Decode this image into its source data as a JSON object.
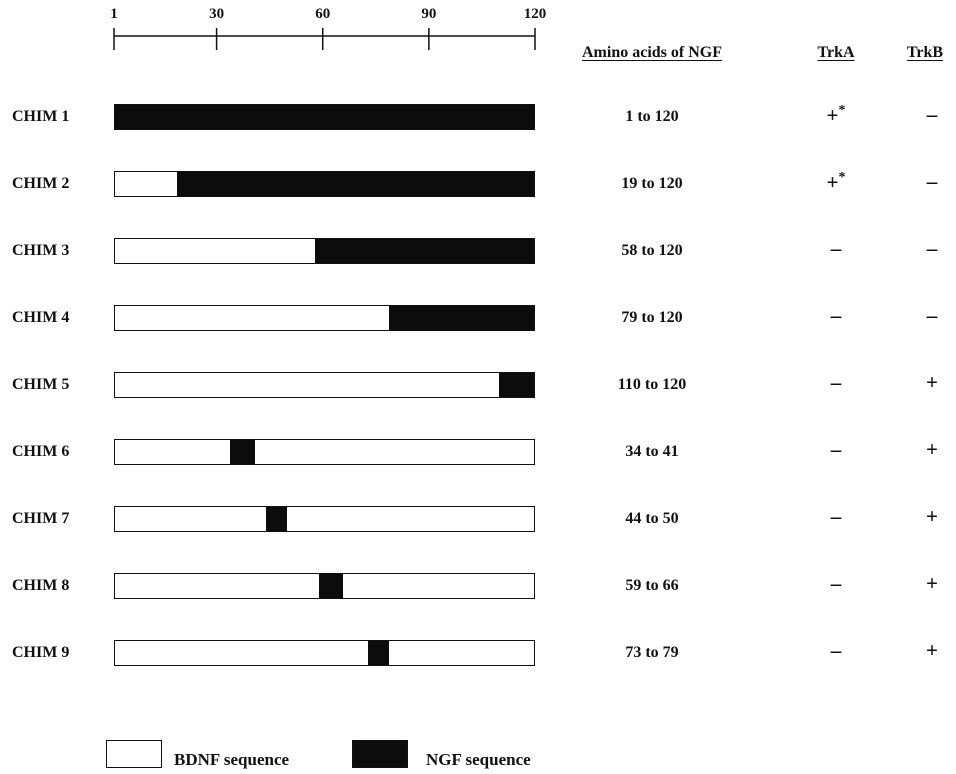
{
  "scale": {
    "min": 1,
    "max": 120,
    "ticks": [
      1,
      30,
      60,
      90,
      120
    ],
    "tick_labels": [
      "1",
      "30",
      "60",
      "90",
      "120"
    ]
  },
  "headers": {
    "amino_acids": "Amino acids of NGF",
    "trka": "TrkA",
    "trkb": "TrkB"
  },
  "rows": [
    {
      "label": "CHIM 1",
      "ngf_start": 1,
      "ngf_end": 120,
      "range": "1 to 120",
      "trka": "+",
      "trka_star": "*",
      "trkb": "–"
    },
    {
      "label": "CHIM 2",
      "ngf_start": 19,
      "ngf_end": 120,
      "range": "19 to 120",
      "trka": "+",
      "trka_star": "*",
      "trkb": "–"
    },
    {
      "label": "CHIM 3",
      "ngf_start": 58,
      "ngf_end": 120,
      "range": "58 to 120",
      "trka": "–",
      "trka_star": "",
      "trkb": "–"
    },
    {
      "label": "CHIM 4",
      "ngf_start": 79,
      "ngf_end": 120,
      "range": "79 to 120",
      "trka": "–",
      "trka_star": "",
      "trkb": "–"
    },
    {
      "label": "CHIM 5",
      "ngf_start": 110,
      "ngf_end": 120,
      "range": "110 to 120",
      "trka": "–",
      "trka_star": "",
      "trkb": "+"
    },
    {
      "label": "CHIM 6",
      "ngf_start": 34,
      "ngf_end": 41,
      "range": "34 to 41",
      "trka": "–",
      "trka_star": "",
      "trkb": "+"
    },
    {
      "label": "CHIM 7",
      "ngf_start": 44,
      "ngf_end": 50,
      "range": "44 to 50",
      "trka": "–",
      "trka_star": "",
      "trkb": "+"
    },
    {
      "label": "CHIM 8",
      "ngf_start": 59,
      "ngf_end": 66,
      "range": "59 to 66",
      "trka": "–",
      "trka_star": "",
      "trkb": "+"
    },
    {
      "label": "CHIM 9",
      "ngf_start": 73,
      "ngf_end": 79,
      "range": "73 to 79",
      "trka": "–",
      "trka_star": "",
      "trkb": "+"
    }
  ],
  "legend": {
    "bdnf": "BDNF sequence",
    "ngf": "NGF sequence",
    "bdnf_color": "#ffffff",
    "ngf_color": "#0c0c0c"
  }
}
